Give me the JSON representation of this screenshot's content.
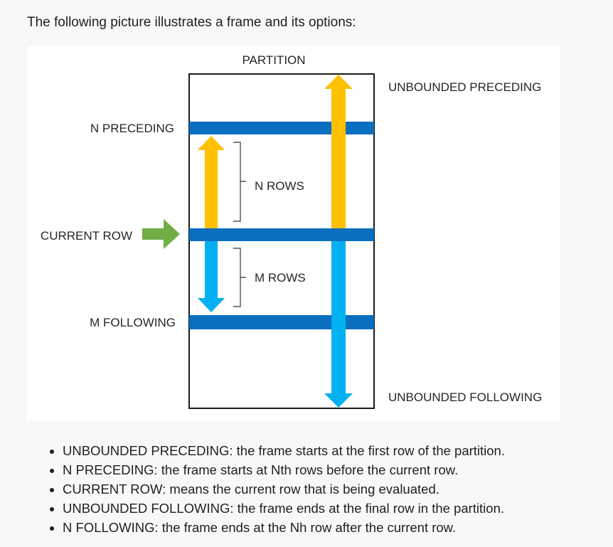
{
  "intro": "The following picture illustrates a frame and its options:",
  "diagram": {
    "partition_label": "PARTITION",
    "unbounded_preceding_label": "UNBOUNDED PRECEDING",
    "unbounded_following_label": "UNBOUNDED FOLLOWING",
    "n_preceding_label": "N PRECEDING",
    "current_row_label": "CURRENT ROW",
    "m_following_label": "M FOLLOWING",
    "n_rows_label": "N ROWS",
    "m_rows_label": "M ROWS",
    "colors": {
      "row_band": "#0a6fbf",
      "preceding_arrow": "#ffc000",
      "following_arrow": "#00b0f0",
      "current_row_arrow": "#70ad47",
      "partition_border": "#1a1a1a"
    }
  },
  "bullets": [
    "UNBOUNDED PRECEDING: the frame starts at the first row of the partition.",
    "N PRECEDING: the frame starts at Nth rows before the current row.",
    "CURRENT ROW: means the current row that is being evaluated.",
    "UNBOUNDED FOLLOWING: the frame ends at the final row in the partition.",
    "N FOLLOWING: the frame ends at the Nh row after the current row."
  ]
}
